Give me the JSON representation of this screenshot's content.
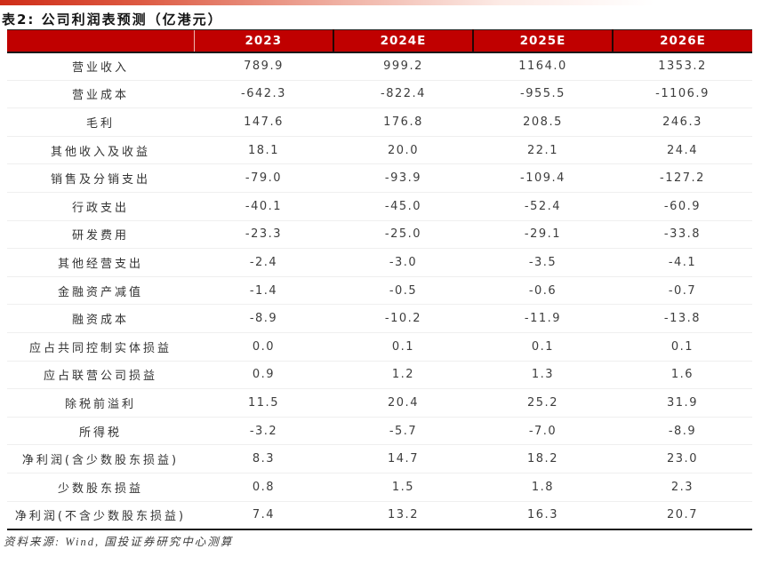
{
  "page": {
    "title": "表2: 公司利润表预测（亿港元）",
    "source_note": "资料来源: Wind, 国投证券研究中心测算"
  },
  "colors": {
    "header_bg": "#c00000",
    "header_text": "#ffffff",
    "accent_bar_left": "#cf2d18",
    "table_border": "#1a1a1a",
    "body_text": "#3d3d3d"
  },
  "chart_data": {
    "type": "table",
    "title": "表2: 公司利润表预测（亿港元）",
    "unit": "亿港元",
    "columns": [
      "",
      "2023",
      "2024E",
      "2025E",
      "2026E"
    ],
    "rows": [
      {
        "label": "营业收入",
        "values": [
          "789.9",
          "999.2",
          "1164.0",
          "1353.2"
        ]
      },
      {
        "label": "营业成本",
        "values": [
          "-642.3",
          "-822.4",
          "-955.5",
          "-1106.9"
        ]
      },
      {
        "label": "毛利",
        "values": [
          "147.6",
          "176.8",
          "208.5",
          "246.3"
        ]
      },
      {
        "label": "其他收入及收益",
        "values": [
          "18.1",
          "20.0",
          "22.1",
          "24.4"
        ]
      },
      {
        "label": "销售及分销支出",
        "values": [
          "-79.0",
          "-93.9",
          "-109.4",
          "-127.2"
        ]
      },
      {
        "label": "行政支出",
        "values": [
          "-40.1",
          "-45.0",
          "-52.4",
          "-60.9"
        ]
      },
      {
        "label": "研发费用",
        "values": [
          "-23.3",
          "-25.0",
          "-29.1",
          "-33.8"
        ]
      },
      {
        "label": "其他经营支出",
        "values": [
          "-2.4",
          "-3.0",
          "-3.5",
          "-4.1"
        ]
      },
      {
        "label": "金融资产减值",
        "values": [
          "-1.4",
          "-0.5",
          "-0.6",
          "-0.7"
        ]
      },
      {
        "label": "融资成本",
        "values": [
          "-8.9",
          "-10.2",
          "-11.9",
          "-13.8"
        ]
      },
      {
        "label": "应占共同控制实体损益",
        "values": [
          "0.0",
          "0.1",
          "0.1",
          "0.1"
        ]
      },
      {
        "label": "应占联营公司损益",
        "values": [
          "0.9",
          "1.2",
          "1.3",
          "1.6"
        ]
      },
      {
        "label": "除税前溢利",
        "values": [
          "11.5",
          "20.4",
          "25.2",
          "31.9"
        ]
      },
      {
        "label": "所得税",
        "values": [
          "-3.2",
          "-5.7",
          "-7.0",
          "-8.9"
        ]
      },
      {
        "label": "净利润(含少数股东损益)",
        "values": [
          "8.3",
          "14.7",
          "18.2",
          "23.0"
        ]
      },
      {
        "label": "少数股东损益",
        "values": [
          "0.8",
          "1.5",
          "1.8",
          "2.3"
        ]
      },
      {
        "label": "净利润(不含少数股东损益)",
        "values": [
          "7.4",
          "13.2",
          "16.3",
          "20.7"
        ]
      }
    ],
    "source": "资料来源: Wind, 国投证券研究中心测算",
    "layout": {
      "grid": "light horizontal row separators",
      "header_style": "red band with dark cell separators"
    }
  }
}
